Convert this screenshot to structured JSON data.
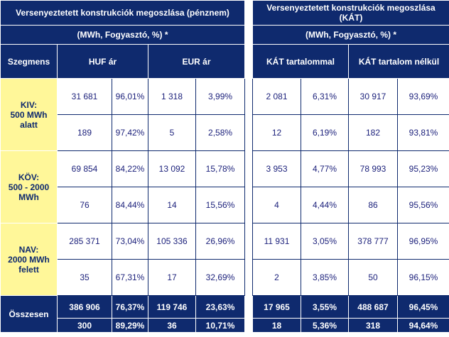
{
  "left": {
    "title": "Versenyeztetett konstrukciók megoszlása (pénznem)",
    "subtitle": "(MWh, Fogyasztó, %) *",
    "segment_header": "Szegmens",
    "col1": "HUF ár",
    "col2": "EUR ár",
    "rows": [
      {
        "seg_l1": "KIV:",
        "seg_l2": "500 MWh",
        "seg_l3": "alatt",
        "a": [
          "31 681",
          "96,01%",
          "1 318",
          "3,99%"
        ],
        "b": [
          "189",
          "97,42%",
          "5",
          "2,58%"
        ]
      },
      {
        "seg_l1": "KÖV:",
        "seg_l2": "500 - 2000",
        "seg_l3": "MWh",
        "a": [
          "69 854",
          "84,22%",
          "13 092",
          "15,78%"
        ],
        "b": [
          "76",
          "84,44%",
          "14",
          "15,56%"
        ]
      },
      {
        "seg_l1": "NAV:",
        "seg_l2": "2000 MWh",
        "seg_l3": "felett",
        "a": [
          "285 371",
          "73,04%",
          "105 336",
          "26,96%"
        ],
        "b": [
          "35",
          "67,31%",
          "17",
          "32,69%"
        ]
      }
    ],
    "total_label": "Összesen",
    "total_a": [
      "386 906",
      "76,37%",
      "119 746",
      "23,63%"
    ],
    "total_b": [
      "300",
      "89,29%",
      "36",
      "10,71%"
    ]
  },
  "right": {
    "title_l1": "Versenyeztetett konstrukciók megoszlása",
    "title_l2": "(KÁT)",
    "subtitle": "(MWh, Fogyasztó, %) *",
    "col1": "KÁT tartalommal",
    "col2": "KÁT tartalom nélkül",
    "rows": [
      {
        "a": [
          "2 081",
          "6,31%",
          "30 917",
          "93,69%"
        ],
        "b": [
          "12",
          "6,19%",
          "182",
          "93,81%"
        ]
      },
      {
        "a": [
          "3 953",
          "4,77%",
          "78 993",
          "95,23%"
        ],
        "b": [
          "4",
          "4,44%",
          "86",
          "95,56%"
        ]
      },
      {
        "a": [
          "11 931",
          "3,05%",
          "378 777",
          "96,95%"
        ],
        "b": [
          "2",
          "3,85%",
          "50",
          "96,15%"
        ]
      }
    ],
    "total_a": [
      "17 965",
      "3,55%",
      "488 687",
      "96,45%"
    ],
    "total_b": [
      "18",
      "5,36%",
      "318",
      "94,64%"
    ]
  },
  "colors": {
    "navy": "#0f2a6e",
    "highlight": "#fff799",
    "value_text": "#1a1f7a"
  }
}
